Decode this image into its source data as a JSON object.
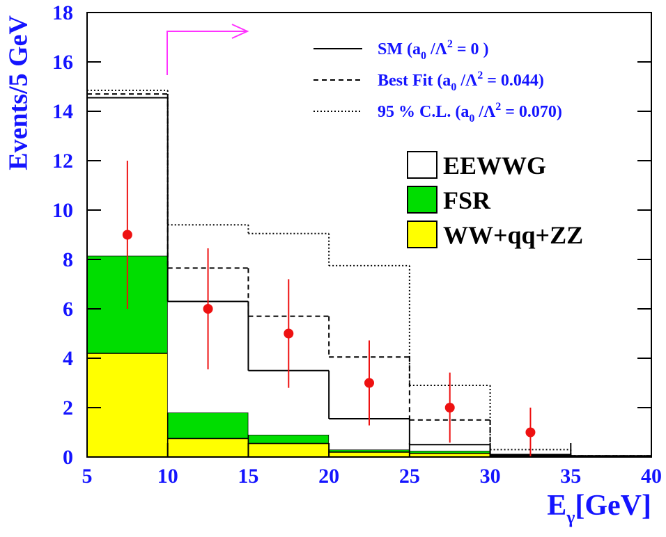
{
  "chart_data": {
    "type": "histogram",
    "y_label": "Events/5 GeV",
    "x_label_symbol": "E",
    "x_label_subscript": "γ",
    "x_label_unit": "[GeV]",
    "bins": [
      5,
      10,
      15,
      20,
      25,
      30,
      35,
      40
    ],
    "xlim": [
      5,
      40
    ],
    "xticks": [
      5,
      10,
      15,
      20,
      25,
      30,
      35,
      40
    ],
    "ylim": [
      0,
      18
    ],
    "yticks": [
      0,
      2,
      4,
      6,
      8,
      10,
      12,
      14,
      16,
      18
    ],
    "stack": [
      {
        "name": "WW+qq+ZZ",
        "color": "#ffff00",
        "values": [
          4.2,
          0.75,
          0.55,
          0.2,
          0.15,
          0.05,
          0
        ]
      },
      {
        "name": "FSR",
        "color": "#00dd00",
        "values": [
          3.95,
          1.05,
          0.35,
          0.1,
          0.1,
          0.03,
          0
        ]
      },
      {
        "name": "EEWWG",
        "color": "#ffffff",
        "values": [
          6.4,
          4.5,
          2.6,
          1.25,
          0.25,
          0.02,
          0.05
        ]
      }
    ],
    "lines": [
      {
        "name": [
          "SM (a",
          "0",
          " /Λ",
          "2",
          " = 0 )"
        ],
        "style": "solid",
        "values": [
          14.55,
          6.3,
          3.5,
          1.55,
          0.5,
          0.1,
          0.05
        ]
      },
      {
        "name": [
          "Best Fit (a",
          "0",
          " /Λ",
          "2",
          " = 0.044)"
        ],
        "style": "dashed",
        "values": [
          14.7,
          7.65,
          5.7,
          4.05,
          1.5,
          0.1,
          0.05
        ]
      },
      {
        "name": [
          "95 % C.L. (a",
          "0",
          " /Λ",
          "2",
          " = 0.070)"
        ],
        "style": "dotted",
        "values": [
          14.85,
          9.4,
          9.05,
          7.75,
          2.9,
          0.3,
          0.05
        ]
      }
    ],
    "points": {
      "color": "#ee1111",
      "x": [
        7.5,
        12.5,
        17.5,
        22.5,
        27.5,
        32.5
      ],
      "values": [
        9,
        6,
        5,
        3,
        2,
        1
      ],
      "yerr": [
        3,
        2.45,
        2.2,
        1.72,
        1.42,
        1
      ]
    }
  }
}
